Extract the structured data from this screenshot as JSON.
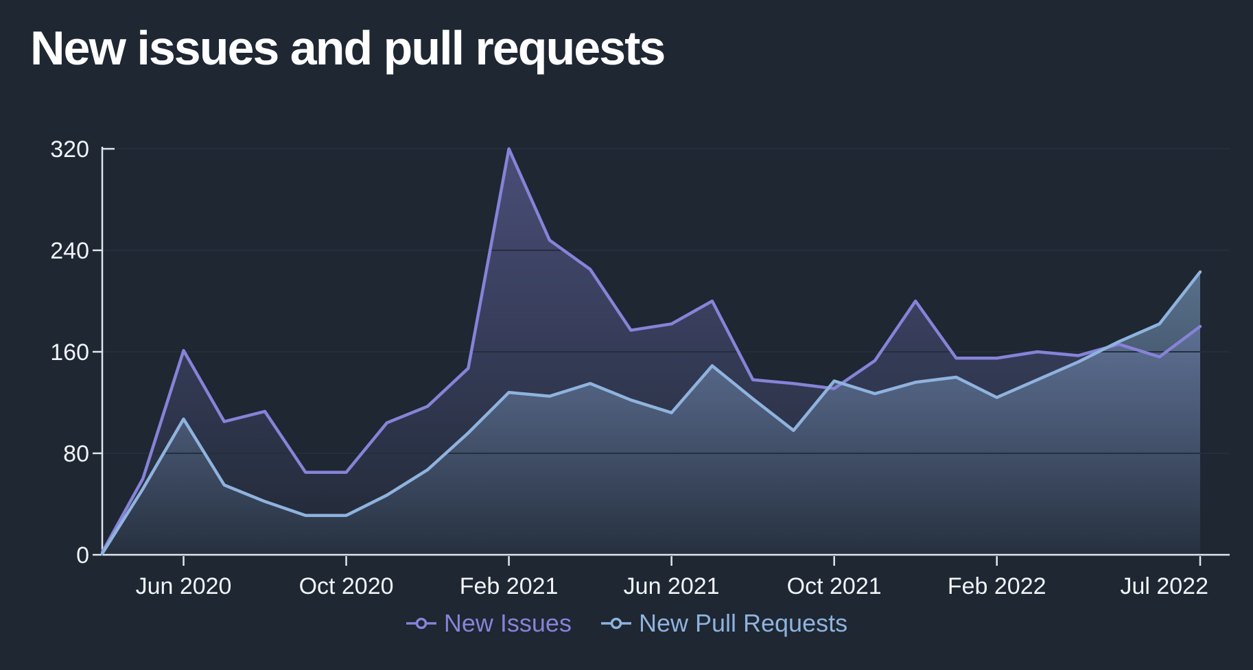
{
  "title": "New issues and pull requests",
  "colors": {
    "background": "#1e2732",
    "title": "#ffffff",
    "axis_line": "#e2e7ee",
    "tick_label": "#f1f4f8",
    "gridline": "#242e3c",
    "new_issues": "#8683d8",
    "new_pull_requests": "#8fb3de"
  },
  "chart_data": {
    "type": "area",
    "title": "New issues and pull requests",
    "xlabel": "",
    "ylabel": "",
    "ylim": [
      0,
      320
    ],
    "y_ticks": [
      0,
      80,
      160,
      240,
      320
    ],
    "grid": "horizontal",
    "legend_position": "bottom-center",
    "x": [
      "Apr 2020",
      "May 2020",
      "Jun 2020",
      "Jul 2020",
      "Aug 2020",
      "Sep 2020",
      "Oct 2020",
      "Nov 2020",
      "Dec 2020",
      "Jan 2021",
      "Feb 2021",
      "Mar 2021",
      "Apr 2021",
      "May 2021",
      "Jun 2021",
      "Jul 2021",
      "Aug 2021",
      "Sep 2021",
      "Oct 2021",
      "Nov 2021",
      "Dec 2021",
      "Jan 2022",
      "Feb 2022",
      "Mar 2022",
      "Apr 2022",
      "May 2022",
      "Jun 2022",
      "Jul 2022"
    ],
    "x_tick_labels": [
      "Jun 2020",
      "Oct 2020",
      "Feb 2021",
      "Jun 2021",
      "Oct 2021",
      "Feb 2022",
      "Jul 2022"
    ],
    "x_tick_month_indices": [
      2,
      6,
      10,
      14,
      18,
      22,
      27
    ],
    "series": [
      {
        "name": "New Issues",
        "color": "#8683d8",
        "values": [
          2,
          60,
          161,
          105,
          113,
          65,
          65,
          104,
          117,
          147,
          320,
          248,
          225,
          177,
          182,
          200,
          138,
          135,
          131,
          153,
          200,
          155,
          155,
          160,
          157,
          166,
          156,
          180
        ]
      },
      {
        "name": "New Pull Requests",
        "color": "#8fb3de",
        "values": [
          1,
          52,
          107,
          55,
          42,
          31,
          31,
          47,
          67,
          96,
          128,
          125,
          135,
          122,
          112,
          149,
          123,
          98,
          137,
          127,
          136,
          140,
          124,
          138,
          152,
          168,
          182,
          223
        ]
      }
    ]
  },
  "legend": {
    "items": [
      {
        "label": "New Issues",
        "color": "#8683d8"
      },
      {
        "label": "New Pull Requests",
        "color": "#8fb3de"
      }
    ]
  }
}
